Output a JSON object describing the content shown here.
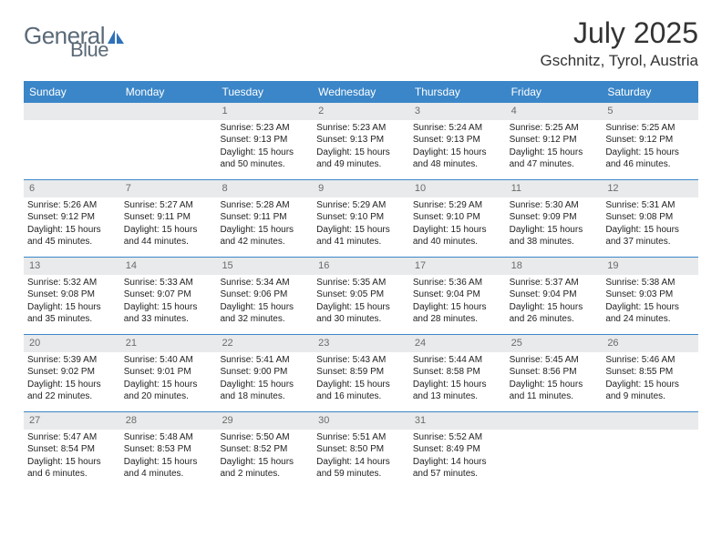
{
  "logo": {
    "part1": "General",
    "part2": "Blue"
  },
  "title": "July 2025",
  "location": "Gschnitz, Tyrol, Austria",
  "colors": {
    "header_bg": "#3b86c8",
    "header_text": "#ffffff",
    "daynum_bg": "#e9eaeb",
    "daynum_text": "#6b6b6b",
    "rule": "#3b86c8",
    "logo_gray": "#5a6a78",
    "logo_blue": "#2f71b8"
  },
  "fonts": {
    "base": "Arial",
    "title_fontsize": 32,
    "location_fontsize": 17,
    "dow_fontsize": 12,
    "cell_fontsize": 10
  },
  "daysOfWeek": [
    "Sunday",
    "Monday",
    "Tuesday",
    "Wednesday",
    "Thursday",
    "Friday",
    "Saturday"
  ],
  "weeks": [
    [
      null,
      null,
      {
        "n": "1",
        "sr": "5:23 AM",
        "ss": "9:13 PM",
        "dl": "15 hours and 50 minutes."
      },
      {
        "n": "2",
        "sr": "5:23 AM",
        "ss": "9:13 PM",
        "dl": "15 hours and 49 minutes."
      },
      {
        "n": "3",
        "sr": "5:24 AM",
        "ss": "9:13 PM",
        "dl": "15 hours and 48 minutes."
      },
      {
        "n": "4",
        "sr": "5:25 AM",
        "ss": "9:12 PM",
        "dl": "15 hours and 47 minutes."
      },
      {
        "n": "5",
        "sr": "5:25 AM",
        "ss": "9:12 PM",
        "dl": "15 hours and 46 minutes."
      }
    ],
    [
      {
        "n": "6",
        "sr": "5:26 AM",
        "ss": "9:12 PM",
        "dl": "15 hours and 45 minutes."
      },
      {
        "n": "7",
        "sr": "5:27 AM",
        "ss": "9:11 PM",
        "dl": "15 hours and 44 minutes."
      },
      {
        "n": "8",
        "sr": "5:28 AM",
        "ss": "9:11 PM",
        "dl": "15 hours and 42 minutes."
      },
      {
        "n": "9",
        "sr": "5:29 AM",
        "ss": "9:10 PM",
        "dl": "15 hours and 41 minutes."
      },
      {
        "n": "10",
        "sr": "5:29 AM",
        "ss": "9:10 PM",
        "dl": "15 hours and 40 minutes."
      },
      {
        "n": "11",
        "sr": "5:30 AM",
        "ss": "9:09 PM",
        "dl": "15 hours and 38 minutes."
      },
      {
        "n": "12",
        "sr": "5:31 AM",
        "ss": "9:08 PM",
        "dl": "15 hours and 37 minutes."
      }
    ],
    [
      {
        "n": "13",
        "sr": "5:32 AM",
        "ss": "9:08 PM",
        "dl": "15 hours and 35 minutes."
      },
      {
        "n": "14",
        "sr": "5:33 AM",
        "ss": "9:07 PM",
        "dl": "15 hours and 33 minutes."
      },
      {
        "n": "15",
        "sr": "5:34 AM",
        "ss": "9:06 PM",
        "dl": "15 hours and 32 minutes."
      },
      {
        "n": "16",
        "sr": "5:35 AM",
        "ss": "9:05 PM",
        "dl": "15 hours and 30 minutes."
      },
      {
        "n": "17",
        "sr": "5:36 AM",
        "ss": "9:04 PM",
        "dl": "15 hours and 28 minutes."
      },
      {
        "n": "18",
        "sr": "5:37 AM",
        "ss": "9:04 PM",
        "dl": "15 hours and 26 minutes."
      },
      {
        "n": "19",
        "sr": "5:38 AM",
        "ss": "9:03 PM",
        "dl": "15 hours and 24 minutes."
      }
    ],
    [
      {
        "n": "20",
        "sr": "5:39 AM",
        "ss": "9:02 PM",
        "dl": "15 hours and 22 minutes."
      },
      {
        "n": "21",
        "sr": "5:40 AM",
        "ss": "9:01 PM",
        "dl": "15 hours and 20 minutes."
      },
      {
        "n": "22",
        "sr": "5:41 AM",
        "ss": "9:00 PM",
        "dl": "15 hours and 18 minutes."
      },
      {
        "n": "23",
        "sr": "5:43 AM",
        "ss": "8:59 PM",
        "dl": "15 hours and 16 minutes."
      },
      {
        "n": "24",
        "sr": "5:44 AM",
        "ss": "8:58 PM",
        "dl": "15 hours and 13 minutes."
      },
      {
        "n": "25",
        "sr": "5:45 AM",
        "ss": "8:56 PM",
        "dl": "15 hours and 11 minutes."
      },
      {
        "n": "26",
        "sr": "5:46 AM",
        "ss": "8:55 PM",
        "dl": "15 hours and 9 minutes."
      }
    ],
    [
      {
        "n": "27",
        "sr": "5:47 AM",
        "ss": "8:54 PM",
        "dl": "15 hours and 6 minutes."
      },
      {
        "n": "28",
        "sr": "5:48 AM",
        "ss": "8:53 PM",
        "dl": "15 hours and 4 minutes."
      },
      {
        "n": "29",
        "sr": "5:50 AM",
        "ss": "8:52 PM",
        "dl": "15 hours and 2 minutes."
      },
      {
        "n": "30",
        "sr": "5:51 AM",
        "ss": "8:50 PM",
        "dl": "14 hours and 59 minutes."
      },
      {
        "n": "31",
        "sr": "5:52 AM",
        "ss": "8:49 PM",
        "dl": "14 hours and 57 minutes."
      },
      null,
      null
    ]
  ],
  "labels": {
    "sunrise": "Sunrise: ",
    "sunset": "Sunset: ",
    "daylight": "Daylight: "
  }
}
